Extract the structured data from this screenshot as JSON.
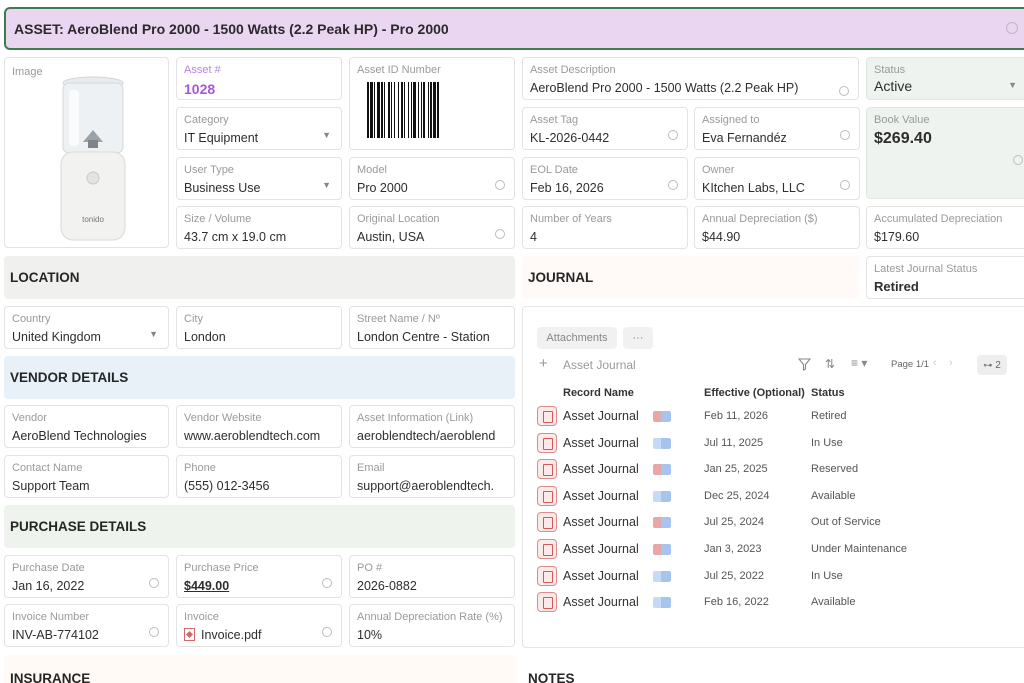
{
  "title": "ASSET:  AeroBlend Pro 2000 - 1500 Watts (2.2 Peak HP) - Pro 2000",
  "image": {
    "label": "Image",
    "product_text": "tonido"
  },
  "asset_number": {
    "label": "Asset #",
    "value": "1028"
  },
  "asset_id_number": {
    "label": "Asset ID Number"
  },
  "asset_description": {
    "label": "Asset Description",
    "value": "AeroBlend Pro 2000 - 1500 Watts (2.2 Peak HP)"
  },
  "status": {
    "label": "Status",
    "value": "Active"
  },
  "category": {
    "label": "Category",
    "value": "IT Equipment"
  },
  "asset_tag": {
    "label": "Asset Tag",
    "value": "KL-2026-0442"
  },
  "assigned_to": {
    "label": "Assigned to",
    "value": "Eva Fernandéz"
  },
  "book_value": {
    "label": "Book Value",
    "value": "$269.40"
  },
  "user_type": {
    "label": "User Type",
    "value": "Business Use"
  },
  "model": {
    "label": "Model",
    "value": "Pro 2000"
  },
  "eol_date": {
    "label": "EOL Date",
    "value": "Feb 16, 2026"
  },
  "owner": {
    "label": "Owner",
    "value": "KItchen Labs, LLC"
  },
  "size_volume": {
    "label": "Size / Volume",
    "value": "43.7 cm x 19.0 cm"
  },
  "original_location": {
    "label": "Original Location",
    "value": "Austin, USA"
  },
  "number_of_years": {
    "label": "Number of Years",
    "value": "4"
  },
  "annual_depreciation": {
    "label": "Annual Depreciation ($)",
    "value": "$44.90"
  },
  "accumulated_depreciation": {
    "label": "Accumulated Depreciation",
    "value": "$179.60"
  },
  "latest_journal_status": {
    "label": "Latest Journal Status",
    "value": "Retired"
  },
  "sections": {
    "location": "LOCATION",
    "journal": "JOURNAL",
    "vendor": "VENDOR DETAILS",
    "purchase": "PURCHASE DETAILS",
    "insurance": "INSURANCE",
    "notes": "NOTES"
  },
  "country": {
    "label": "Country",
    "value": "United Kingdom"
  },
  "city": {
    "label": "City",
    "value": "London"
  },
  "street": {
    "label": "Street Name / Nº",
    "value": "London Centre - Station"
  },
  "vendor": {
    "label": "Vendor",
    "value": "AeroBlend Technologies"
  },
  "vendor_website": {
    "label": "Vendor Website",
    "value": "www.aeroblendtech.com"
  },
  "asset_info_link": {
    "label": "Asset Information (Link)",
    "value": "aeroblendtech/aeroblend"
  },
  "contact_name": {
    "label": "Contact Name",
    "value": "Support Team"
  },
  "phone": {
    "label": "Phone",
    "value": "(555) 012-3456"
  },
  "email": {
    "label": "Email",
    "value": "support@aeroblendtech."
  },
  "purchase_date": {
    "label": "Purchase Date",
    "value": "Jan 16, 2022"
  },
  "purchase_price": {
    "label": "Purchase Price",
    "value": "$449.00"
  },
  "po_number": {
    "label": "PO #",
    "value": "2026-0882"
  },
  "invoice_number": {
    "label": "Invoice Number",
    "value": "INV-AB-774102"
  },
  "invoice": {
    "label": "Invoice",
    "value": "Invoice.pdf"
  },
  "annual_depreciation_rate": {
    "label": "Annual Depreciation Rate (%)",
    "value": "10%"
  },
  "journal": {
    "tabs": [
      "Attachments",
      "···"
    ],
    "add_label": "Asset Journal",
    "page": "Page 1/1",
    "count": "2",
    "columns": [
      "Record Name",
      "Effective (Optional)",
      "Status"
    ],
    "rows": [
      {
        "name": "Asset Journal",
        "date": "Feb 11, 2026",
        "status": "Retired",
        "tag": "red"
      },
      {
        "name": "Asset Journal",
        "date": "Jul 11, 2025",
        "status": "In Use",
        "tag": "blue"
      },
      {
        "name": "Asset Journal",
        "date": "Jan 25, 2025",
        "status": "Reserved",
        "tag": "red"
      },
      {
        "name": "Asset Journal",
        "date": "Dec 25, 2024",
        "status": "Available",
        "tag": "blue"
      },
      {
        "name": "Asset Journal",
        "date": "Jul 25, 2024",
        "status": "Out of Service",
        "tag": "red"
      },
      {
        "name": "Asset Journal",
        "date": "Jan 3, 2023",
        "status": "Under Maintenance",
        "tag": "red"
      },
      {
        "name": "Asset Journal",
        "date": "Jul 25, 2022",
        "status": "In Use",
        "tag": "blue"
      },
      {
        "name": "Asset Journal",
        "date": "Feb 16, 2022",
        "status": "Available",
        "tag": "blue"
      }
    ]
  }
}
